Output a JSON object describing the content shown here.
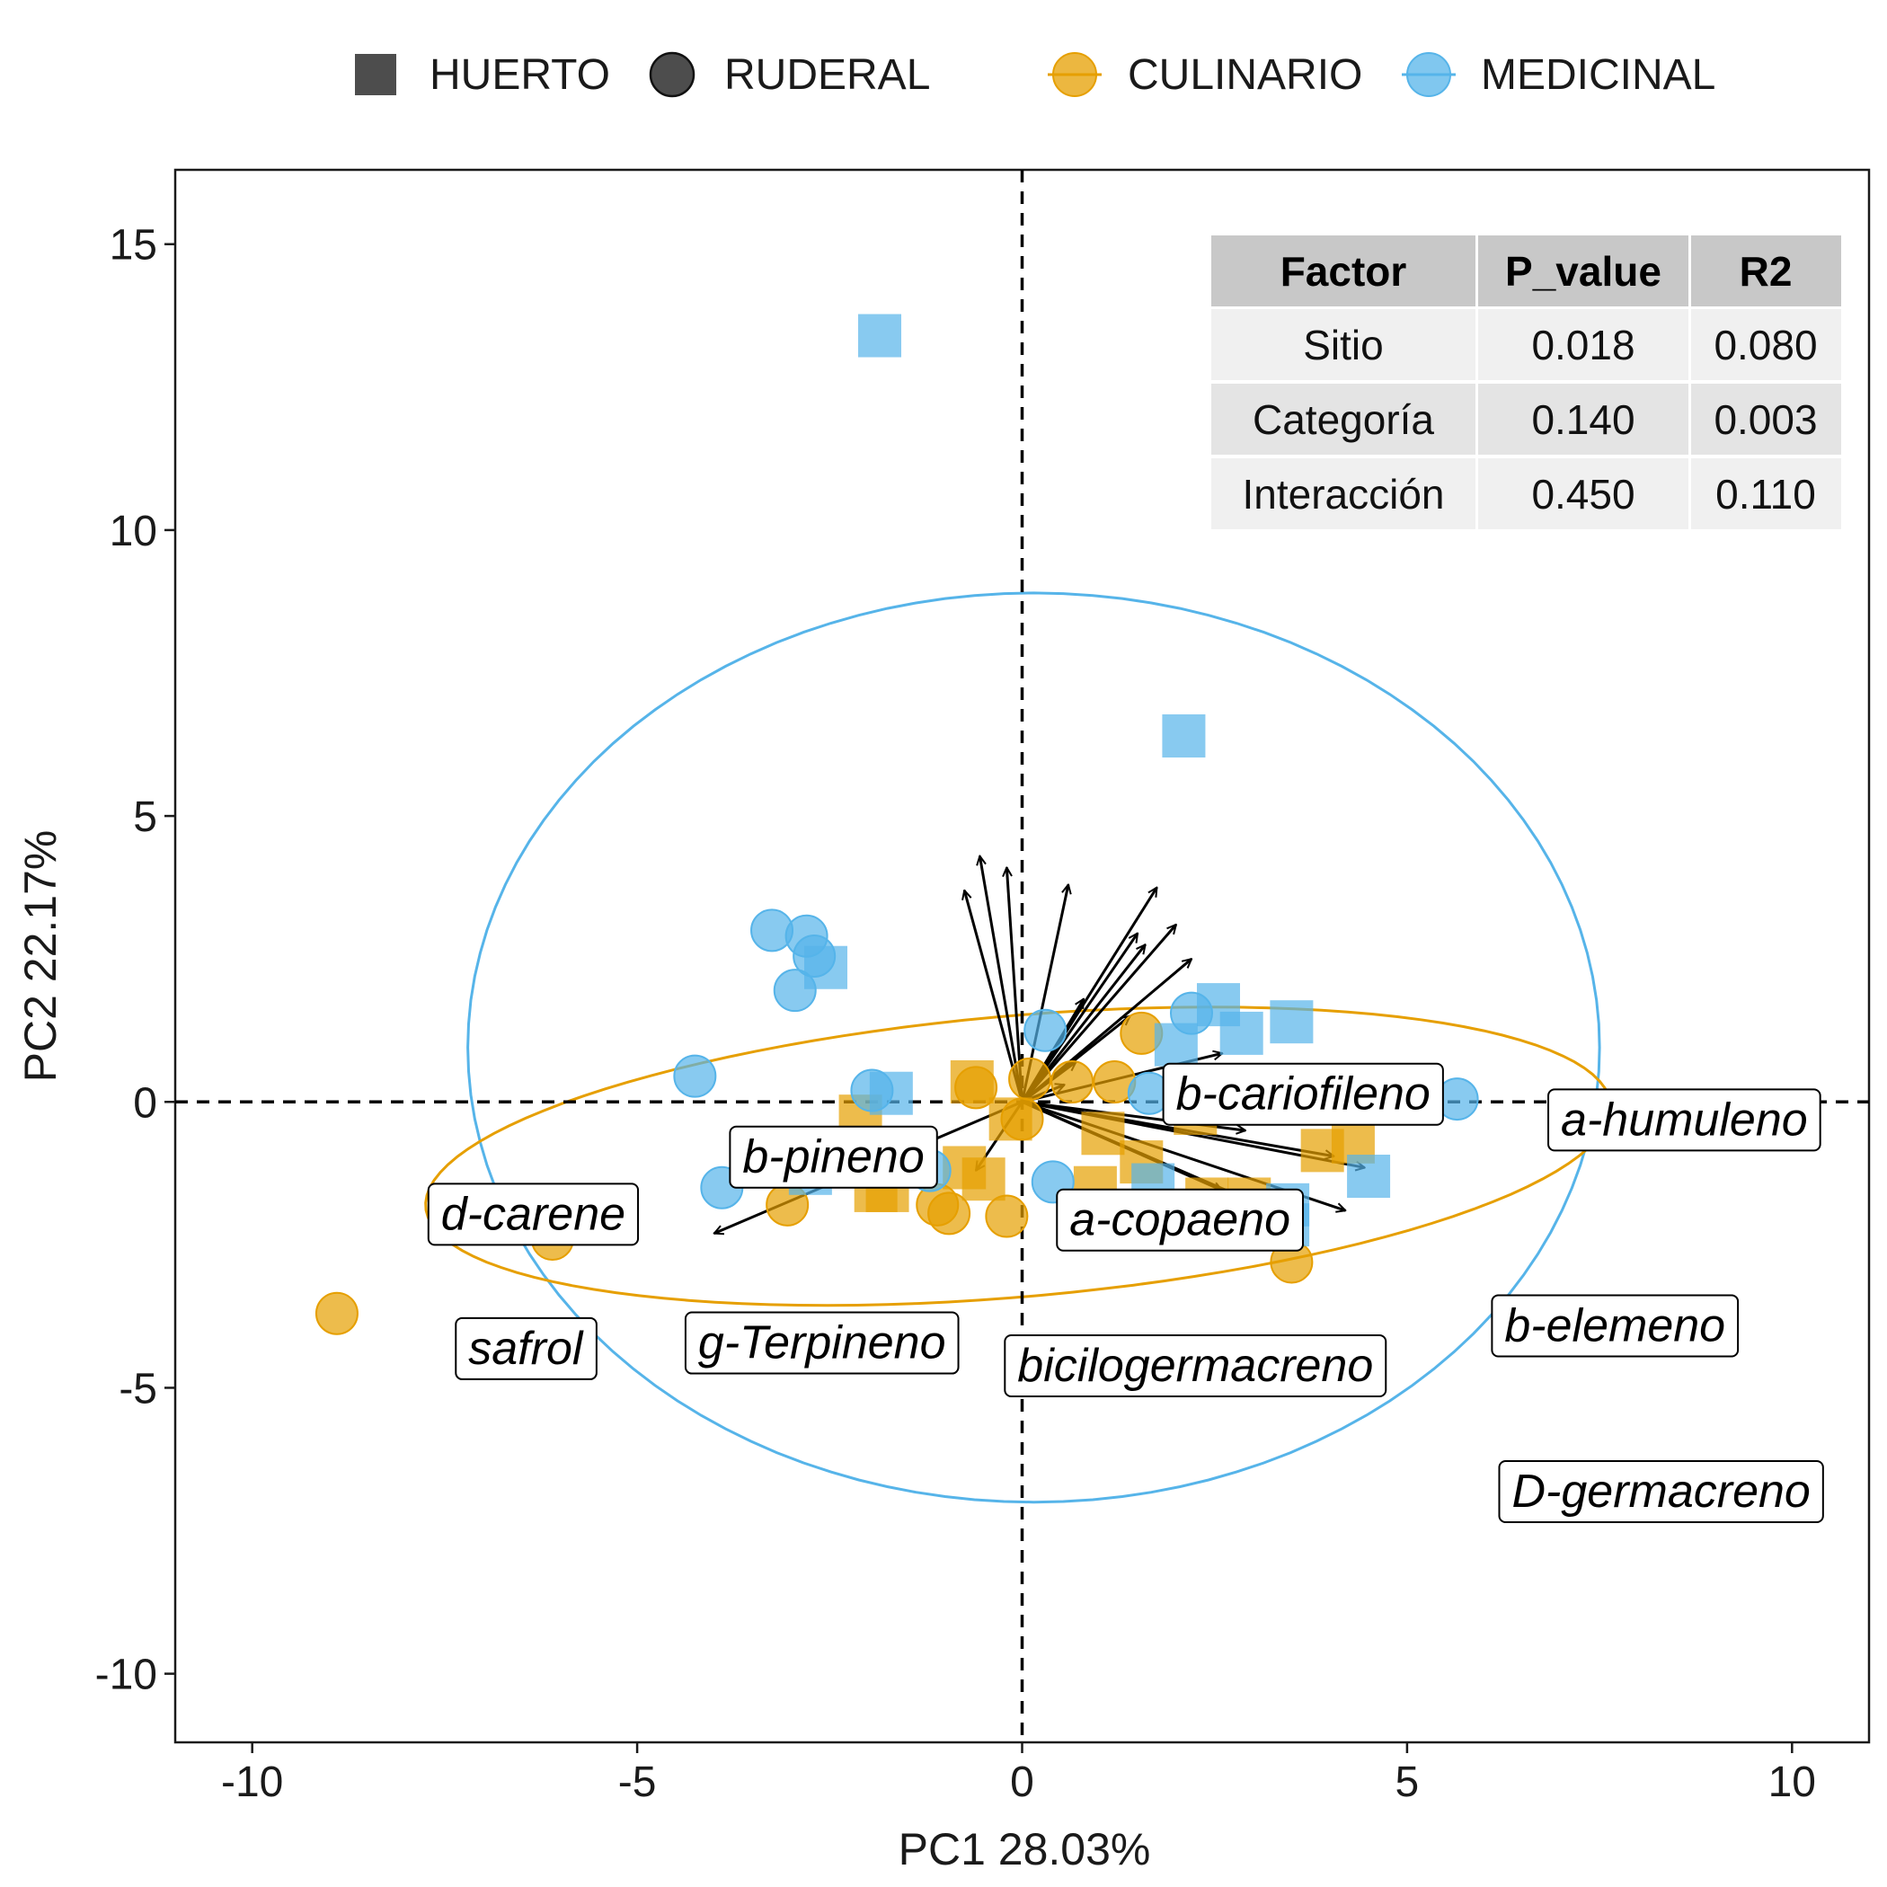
{
  "chart_data": {
    "type": "scatter",
    "xlabel": "PC1  28.03%",
    "ylabel": "PC2  22.17%",
    "xlim": [
      -11,
      11
    ],
    "ylim": [
      -11.2,
      16.3
    ],
    "xticks": [
      -10,
      -5,
      0,
      5,
      10
    ],
    "yticks": [
      -10,
      -5,
      0,
      5,
      10,
      15
    ],
    "xtick_labels": [
      "-10",
      "-5",
      "0",
      "5",
      "10"
    ],
    "ytick_labels": [
      "-10",
      "-5",
      "0",
      "5",
      "10",
      "15"
    ],
    "grid": false,
    "legend_position": "top",
    "legend": {
      "shapes": [
        {
          "label": "HUERTO",
          "shape": "square"
        },
        {
          "label": "RUDERAL",
          "shape": "circle"
        }
      ],
      "groups": [
        {
          "label": "CULINARIO",
          "color": "#E69F00"
        },
        {
          "label": "MEDICINAL",
          "color": "#56B4E9"
        }
      ]
    },
    "series": [
      {
        "name": "CULINARIO",
        "color": "#E69F00",
        "points": [
          {
            "x": -8.9,
            "y": -3.7,
            "shape": "circle"
          },
          {
            "x": -6.1,
            "y": -2.4,
            "shape": "circle"
          },
          {
            "x": -3.05,
            "y": -1.8,
            "shape": "circle"
          },
          {
            "x": -1.1,
            "y": -1.8,
            "shape": "circle"
          },
          {
            "x": -0.95,
            "y": -1.95,
            "shape": "circle"
          },
          {
            "x": -0.2,
            "y": -2.0,
            "shape": "circle"
          },
          {
            "x": -0.6,
            "y": 0.25,
            "shape": "circle"
          },
          {
            "x": 0.1,
            "y": 0.4,
            "shape": "circle"
          },
          {
            "x": 0.65,
            "y": 0.35,
            "shape": "circle"
          },
          {
            "x": 1.2,
            "y": 0.35,
            "shape": "circle"
          },
          {
            "x": 1.55,
            "y": 1.2,
            "shape": "circle"
          },
          {
            "x": 0.0,
            "y": -0.3,
            "shape": "circle"
          },
          {
            "x": 3.5,
            "y": -2.8,
            "shape": "circle"
          },
          {
            "x": -2.1,
            "y": -0.25,
            "shape": "square"
          },
          {
            "x": -1.9,
            "y": -1.55,
            "shape": "square"
          },
          {
            "x": -1.75,
            "y": -1.55,
            "shape": "square"
          },
          {
            "x": -0.75,
            "y": -1.15,
            "shape": "square"
          },
          {
            "x": -0.5,
            "y": -1.35,
            "shape": "square"
          },
          {
            "x": -0.65,
            "y": 0.35,
            "shape": "square"
          },
          {
            "x": -0.15,
            "y": -0.3,
            "shape": "square"
          },
          {
            "x": 0.95,
            "y": -1.5,
            "shape": "square"
          },
          {
            "x": 1.05,
            "y": -0.55,
            "shape": "square"
          },
          {
            "x": 1.55,
            "y": -1.05,
            "shape": "square"
          },
          {
            "x": 2.25,
            "y": -0.2,
            "shape": "square"
          },
          {
            "x": 2.4,
            "y": -1.7,
            "shape": "square"
          },
          {
            "x": 2.95,
            "y": -1.7,
            "shape": "square"
          },
          {
            "x": 3.9,
            "y": -0.85,
            "shape": "square"
          },
          {
            "x": 4.3,
            "y": -0.7,
            "shape": "square"
          }
        ]
      },
      {
        "name": "MEDICINAL",
        "color": "#56B4E9",
        "points": [
          {
            "x": -3.25,
            "y": 3.0,
            "shape": "circle"
          },
          {
            "x": -2.8,
            "y": 2.9,
            "shape": "circle"
          },
          {
            "x": -2.7,
            "y": 2.55,
            "shape": "circle"
          },
          {
            "x": -2.95,
            "y": 1.95,
            "shape": "circle"
          },
          {
            "x": -4.25,
            "y": 0.45,
            "shape": "circle"
          },
          {
            "x": -1.95,
            "y": 0.2,
            "shape": "circle"
          },
          {
            "x": -3.9,
            "y": -1.5,
            "shape": "circle"
          },
          {
            "x": -1.2,
            "y": -1.2,
            "shape": "circle"
          },
          {
            "x": 0.3,
            "y": 1.25,
            "shape": "circle"
          },
          {
            "x": 0.4,
            "y": -1.4,
            "shape": "circle"
          },
          {
            "x": 1.65,
            "y": 0.15,
            "shape": "circle"
          },
          {
            "x": 2.2,
            "y": 1.55,
            "shape": "circle"
          },
          {
            "x": 5.65,
            "y": 0.05,
            "shape": "circle"
          },
          {
            "x": -1.85,
            "y": 13.4,
            "shape": "square"
          },
          {
            "x": 2.1,
            "y": 6.4,
            "shape": "square"
          },
          {
            "x": -2.55,
            "y": 2.35,
            "shape": "square"
          },
          {
            "x": -1.7,
            "y": 0.15,
            "shape": "square"
          },
          {
            "x": -2.75,
            "y": -1.25,
            "shape": "square"
          },
          {
            "x": 2.0,
            "y": 1.0,
            "shape": "square"
          },
          {
            "x": 2.55,
            "y": 1.7,
            "shape": "square"
          },
          {
            "x": 2.85,
            "y": 1.2,
            "shape": "square"
          },
          {
            "x": 3.5,
            "y": 1.4,
            "shape": "square"
          },
          {
            "x": 1.7,
            "y": -1.45,
            "shape": "square"
          },
          {
            "x": 3.45,
            "y": -1.8,
            "shape": "square"
          },
          {
            "x": 3.45,
            "y": -2.15,
            "shape": "square"
          },
          {
            "x": 4.5,
            "y": -1.3,
            "shape": "square"
          }
        ]
      }
    ],
    "ellipses": [
      {
        "group": "MEDICINAL",
        "color": "#56B4E9",
        "cx": 0.15,
        "cy": 0.95,
        "rx": 7.35,
        "ry": 7.95,
        "angle_deg": 0
      },
      {
        "group": "CULINARIO",
        "color": "#E69F00",
        "cx": -0.05,
        "cy": -0.95,
        "rx": 7.75,
        "ry": 2.45,
        "angle_deg": 7
      }
    ],
    "loadings": [
      {
        "x": -0.55,
        "y": 4.3
      },
      {
        "x": -0.75,
        "y": 3.7
      },
      {
        "x": -0.2,
        "y": 4.1
      },
      {
        "x": 0.6,
        "y": 3.8
      },
      {
        "x": 1.75,
        "y": 3.75
      },
      {
        "x": 1.5,
        "y": 2.95
      },
      {
        "x": 1.6,
        "y": 2.75
      },
      {
        "x": 2.0,
        "y": 3.1
      },
      {
        "x": 2.2,
        "y": 2.5
      },
      {
        "x": 0.8,
        "y": 1.8
      },
      {
        "x": 1.4,
        "y": 1.5
      },
      {
        "x": 2.6,
        "y": 0.85
      },
      {
        "x": 0.7,
        "y": 0.7
      },
      {
        "x": 0.55,
        "y": 0.3
      },
      {
        "x": 2.9,
        "y": -0.5
      },
      {
        "x": 4.05,
        "y": -0.95
      },
      {
        "x": 4.45,
        "y": -1.15
      },
      {
        "x": 4.2,
        "y": -1.9
      },
      {
        "x": 3.0,
        "y": -1.75
      },
      {
        "x": 2.6,
        "y": -1.55
      },
      {
        "x": -0.6,
        "y": -1.2
      },
      {
        "x": -4.0,
        "y": -2.3
      }
    ],
    "variable_labels": [
      {
        "text": "b-cariofileno",
        "x": 3.65,
        "y": 0.15
      },
      {
        "text": "a-humuleno",
        "x": 8.6,
        "y": -0.3
      },
      {
        "text": "b-pineno",
        "x": -2.45,
        "y": -0.95
      },
      {
        "text": "d-carene",
        "x": -6.35,
        "y": -1.95
      },
      {
        "text": "a-copaeno",
        "x": 2.05,
        "y": -2.05
      },
      {
        "text": "safrol",
        "x": -6.45,
        "y": -4.3
      },
      {
        "text": "g-Terpineno",
        "x": -2.6,
        "y": -4.2
      },
      {
        "text": "bicilogermacreno",
        "x": 2.25,
        "y": -4.6
      },
      {
        "text": "b-elemeno",
        "x": 7.7,
        "y": -3.9
      },
      {
        "text": "D-germacreno",
        "x": 8.3,
        "y": -6.8
      }
    ],
    "table": {
      "headers": [
        "Factor",
        "P_value",
        "R2"
      ],
      "rows": [
        [
          "Sitio",
          "0.018",
          "0.080"
        ],
        [
          "Categoría",
          "0.140",
          "0.003"
        ],
        [
          "Interacción",
          "0.450",
          "0.110"
        ]
      ]
    }
  }
}
